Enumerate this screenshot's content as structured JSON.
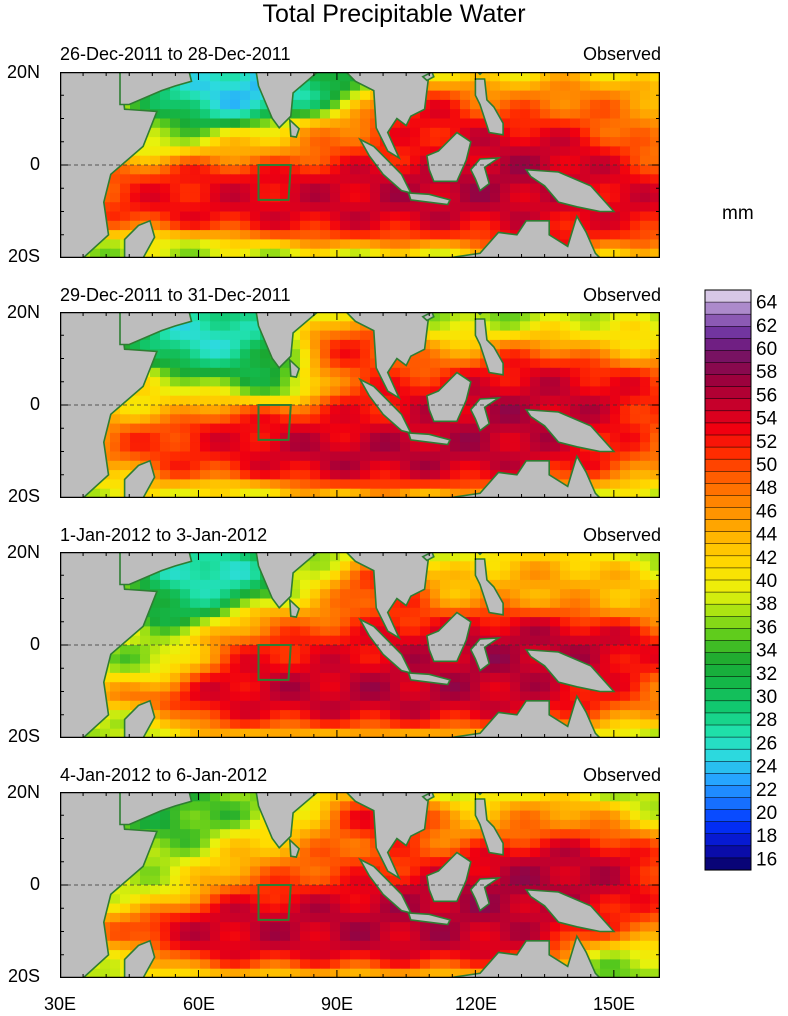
{
  "title": "Total Precipitable Water",
  "units": "mm",
  "colors": {
    "land": "#bdbdbd",
    "coast": "#2e7d32",
    "tick": "#000000"
  },
  "chart_data": {
    "type": "heatmap",
    "title": "Total Precipitable Water",
    "colorbar_label": "mm",
    "colorbar_ticks": [
      "64",
      "62",
      "60",
      "58",
      "56",
      "54",
      "52",
      "50",
      "48",
      "46",
      "44",
      "42",
      "40",
      "38",
      "36",
      "34",
      "32",
      "30",
      "28",
      "26",
      "24",
      "22",
      "20",
      "18",
      "16"
    ],
    "value_range": [
      15,
      65
    ],
    "x_ticks": [
      "30E",
      "60E",
      "90E",
      "120E",
      "150E"
    ],
    "y_ticks": [
      "20N",
      "0",
      "20S"
    ],
    "lon_range": [
      30,
      160
    ],
    "lat_range": [
      -20,
      20
    ],
    "panels": [
      {
        "period": "26-Dec-2011 to 28-Dec-2011",
        "label": "Observed"
      },
      {
        "period": "29-Dec-2011 to 31-Dec-2011",
        "label": "Observed"
      },
      {
        "period": "1-Jan-2012 to 3-Jan-2012",
        "label": "Observed"
      },
      {
        "period": "4-Jan-2012 to 6-Jan-2012",
        "label": "Observed"
      }
    ]
  }
}
